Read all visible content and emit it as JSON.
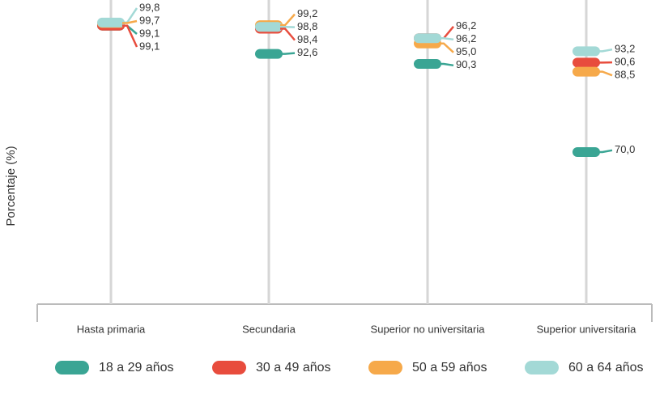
{
  "chart_data": {
    "type": "dot",
    "y_axis_label": "Porcentaje (%)",
    "categories": [
      "Hasta primaria",
      "Secundaria",
      "Superior no universitaria",
      "Superior universitaria"
    ],
    "ylim": [
      35,
      105
    ],
    "series": [
      {
        "name": "18 a 29 años",
        "color": "#3aa594",
        "values": [
          99.1,
          92.6,
          90.3,
          70.0
        ],
        "value_labels": [
          "99,1",
          "92,6",
          "90,3",
          "70,0"
        ]
      },
      {
        "name": "30 a 49 años",
        "color": "#e84c3d",
        "values": [
          99.1,
          98.4,
          96.2,
          90.6
        ],
        "value_labels": [
          "99,1",
          "98,4",
          "96,2",
          "90,6"
        ]
      },
      {
        "name": "50 a 59 años",
        "color": "#f6a94a",
        "values": [
          99.7,
          99.2,
          95.0,
          88.5
        ],
        "value_labels": [
          "99,7",
          "99,2",
          "95,0",
          "88,5"
        ]
      },
      {
        "name": "60 a 64 años",
        "color": "#a3d9d6",
        "values": [
          99.8,
          98.8,
          96.2,
          93.2
        ],
        "value_labels": [
          "99,8",
          "98,8",
          "96,2",
          "93,2"
        ]
      }
    ],
    "legend": "bottom"
  }
}
